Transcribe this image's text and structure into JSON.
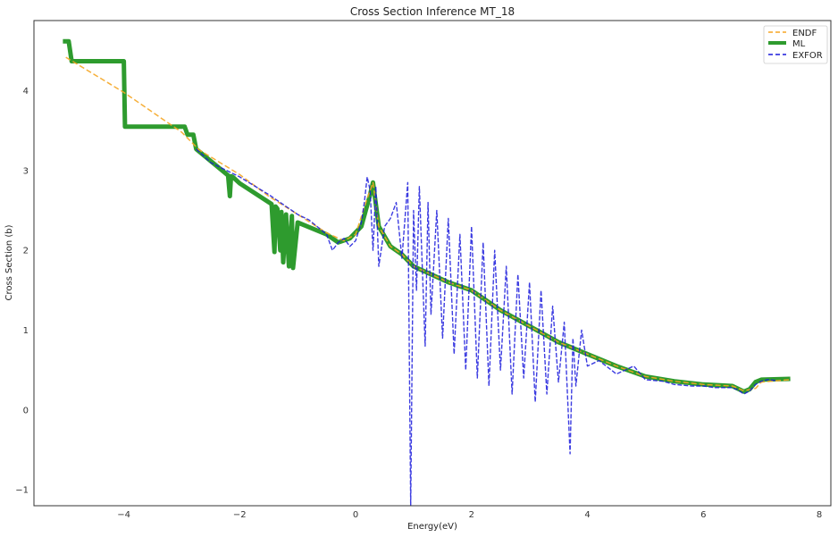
{
  "chart_data": {
    "type": "line",
    "title": "Cross Section Inference MT_18",
    "xlabel": "Energy(eV)",
    "ylabel": "Cross Section (b)",
    "xlim": [
      -5.55,
      8.2
    ],
    "ylim": [
      -1.2,
      4.88
    ],
    "xticks": [
      -4,
      -2,
      0,
      2,
      4,
      6,
      8
    ],
    "yticks": [
      -1,
      0,
      1,
      2,
      3,
      4
    ],
    "grid": false,
    "legend_position": "top-right",
    "colors": {
      "ENDF": "#f5a623",
      "ML": "#2e9b2e",
      "EXFOR": "#1a1adc"
    },
    "series": [
      {
        "name": "ENDF",
        "style": "dashed",
        "x": [
          -5.0,
          -4.0,
          -3.0,
          -2.7,
          -2.0,
          -1.5,
          -1.0,
          -0.5,
          -0.2,
          0.0,
          0.2,
          0.3,
          0.4,
          0.6,
          0.8,
          1.0,
          1.3,
          1.6,
          2.0,
          2.5,
          3.0,
          3.5,
          4.0,
          4.5,
          5.0,
          5.5,
          6.0,
          6.5,
          6.7,
          6.9,
          7.0,
          7.5
        ],
        "y": [
          4.42,
          3.98,
          3.48,
          3.26,
          2.95,
          2.68,
          2.45,
          2.22,
          2.12,
          2.2,
          2.65,
          2.85,
          2.3,
          2.05,
          1.95,
          1.8,
          1.7,
          1.6,
          1.5,
          1.25,
          1.05,
          0.85,
          0.7,
          0.55,
          0.42,
          0.36,
          0.32,
          0.3,
          0.24,
          0.27,
          0.35,
          0.38
        ]
      },
      {
        "name": "ML",
        "style": "solid",
        "x": [
          -5.05,
          -4.95,
          -4.9,
          -4.0,
          -3.98,
          -2.95,
          -2.9,
          -2.8,
          -2.75,
          -2.2,
          -2.17,
          -2.15,
          -2.12,
          -2.0,
          -1.45,
          -1.4,
          -1.38,
          -1.35,
          -1.3,
          -1.28,
          -1.25,
          -1.2,
          -1.15,
          -1.1,
          -1.08,
          -1.0,
          -0.5,
          -0.3,
          -0.1,
          0.1,
          0.25,
          0.3,
          0.4,
          0.6,
          0.8,
          1.0,
          1.3,
          1.6,
          2.0,
          2.5,
          3.0,
          3.5,
          4.0,
          4.5,
          5.0,
          5.5,
          6.0,
          6.5,
          6.7,
          6.8,
          6.9,
          7.0,
          7.5
        ],
        "y": [
          4.62,
          4.62,
          4.37,
          4.37,
          3.55,
          3.55,
          3.45,
          3.45,
          3.27,
          2.94,
          2.68,
          2.93,
          2.92,
          2.84,
          2.58,
          1.98,
          2.55,
          2.52,
          2.0,
          2.48,
          1.85,
          2.45,
          1.8,
          2.43,
          1.78,
          2.35,
          2.2,
          2.1,
          2.15,
          2.3,
          2.7,
          2.85,
          2.3,
          2.05,
          1.95,
          1.8,
          1.7,
          1.6,
          1.5,
          1.25,
          1.05,
          0.85,
          0.7,
          0.55,
          0.42,
          0.36,
          0.32,
          0.3,
          0.23,
          0.26,
          0.35,
          0.38,
          0.39
        ]
      },
      {
        "name": "EXFOR",
        "style": "dashed",
        "x": [
          -2.75,
          -2.5,
          -2.0,
          -1.5,
          -1.0,
          -0.8,
          -0.5,
          -0.4,
          -0.3,
          -0.2,
          -0.1,
          0.0,
          0.1,
          0.15,
          0.2,
          0.25,
          0.3,
          0.35,
          0.4,
          0.5,
          0.6,
          0.7,
          0.8,
          0.9,
          0.95,
          1.0,
          1.05,
          1.1,
          1.2,
          1.25,
          1.3,
          1.4,
          1.5,
          1.6,
          1.7,
          1.8,
          1.9,
          2.0,
          2.1,
          2.2,
          2.3,
          2.4,
          2.5,
          2.6,
          2.7,
          2.8,
          2.9,
          3.0,
          3.1,
          3.2,
          3.3,
          3.4,
          3.5,
          3.6,
          3.7,
          3.75,
          3.8,
          3.9,
          4.0,
          4.2,
          4.5,
          4.8,
          5.0,
          5.3,
          5.5,
          5.8,
          6.0,
          6.2,
          6.5,
          6.6,
          6.7,
          6.8,
          6.9,
          7.0,
          7.1,
          7.25
        ],
        "y": [
          3.27,
          3.1,
          2.92,
          2.7,
          2.45,
          2.38,
          2.2,
          2.0,
          2.1,
          2.15,
          2.05,
          2.12,
          2.35,
          2.6,
          2.92,
          2.75,
          2.0,
          2.8,
          1.8,
          2.3,
          2.4,
          2.6,
          1.9,
          2.85,
          -1.2,
          2.5,
          1.5,
          2.8,
          0.8,
          2.6,
          1.2,
          2.5,
          0.9,
          2.4,
          0.7,
          2.2,
          0.5,
          2.3,
          0.4,
          2.1,
          0.3,
          2.0,
          0.5,
          1.8,
          0.2,
          1.7,
          0.4,
          1.6,
          0.1,
          1.5,
          0.2,
          1.3,
          0.35,
          1.1,
          -0.55,
          0.9,
          0.3,
          1.0,
          0.55,
          0.62,
          0.45,
          0.55,
          0.38,
          0.36,
          0.32,
          0.3,
          0.3,
          0.28,
          0.28,
          0.25,
          0.2,
          0.24,
          0.32,
          0.36,
          0.38,
          0.37
        ]
      }
    ]
  }
}
